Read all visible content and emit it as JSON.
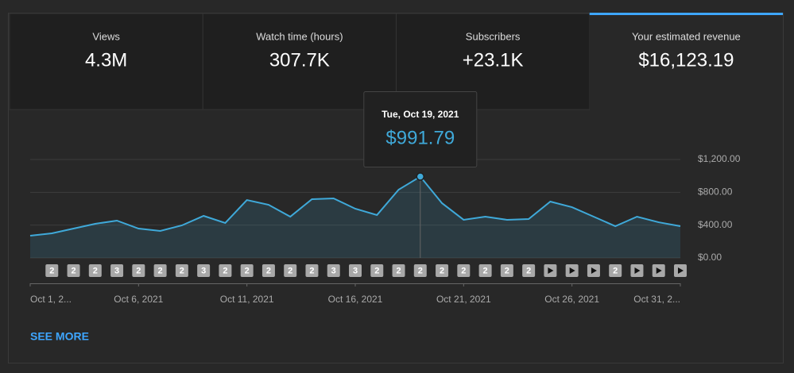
{
  "tabs": [
    {
      "label": "Views",
      "value": "4.3M"
    },
    {
      "label": "Watch time (hours)",
      "value": "307.7K"
    },
    {
      "label": "Subscribers",
      "value": "+23.1K"
    },
    {
      "label": "Your estimated revenue",
      "value": "$16,123.19"
    }
  ],
  "active_tab": 3,
  "chart_data": {
    "type": "line",
    "x": [
      "Oct 1, 2...",
      null,
      null,
      null,
      null,
      "Oct 6, 2021",
      null,
      null,
      null,
      null,
      "Oct 11, 2021",
      null,
      null,
      null,
      null,
      "Oct 16, 2021",
      null,
      null,
      null,
      null,
      "Oct 21, 2021",
      null,
      null,
      null,
      null,
      "Oct 26, 2021",
      null,
      null,
      null,
      null,
      "Oct 31, 2..."
    ],
    "series": [
      {
        "name": "Your estimated revenue",
        "color": "#3fa9d9",
        "values": [
          271,
          300,
          358,
          416,
          455,
          358,
          329,
          397,
          513,
          426,
          706,
          648,
          503,
          716,
          726,
          600,
          523,
          832,
          991.79,
          668,
          465,
          503,
          465,
          474,
          687,
          619,
          503,
          387,
          503,
          435,
          387
        ],
        "value_labels": [
          null,
          null,
          null,
          null,
          null,
          null,
          null,
          null,
          null,
          null,
          null,
          null,
          null,
          null,
          null,
          null,
          null,
          null,
          "$991.79",
          null,
          null,
          null,
          null,
          null,
          null,
          null,
          null,
          null,
          null,
          null,
          null
        ]
      }
    ],
    "tooltip_title": "Tue, Oct 19, 2021",
    "markers": [
      null,
      "2",
      "2",
      "2",
      "3",
      "2",
      "2",
      "2",
      "3",
      "2",
      "2",
      "2",
      "2",
      "2",
      "3",
      "3",
      "2",
      "2",
      "2",
      "2",
      "2",
      "2",
      "2",
      "2",
      "video",
      "video",
      "video",
      "2",
      "video",
      "video",
      "video"
    ],
    "ylim": [
      0,
      1200
    ],
    "yticks": [
      {
        "value": 0,
        "label": "$0.00"
      },
      {
        "value": 400,
        "label": "$400.00"
      },
      {
        "value": 800,
        "label": "$800.00"
      },
      {
        "value": 1200,
        "label": "$1,200.00"
      }
    ],
    "grid": true
  },
  "see_more": "SEE MORE"
}
